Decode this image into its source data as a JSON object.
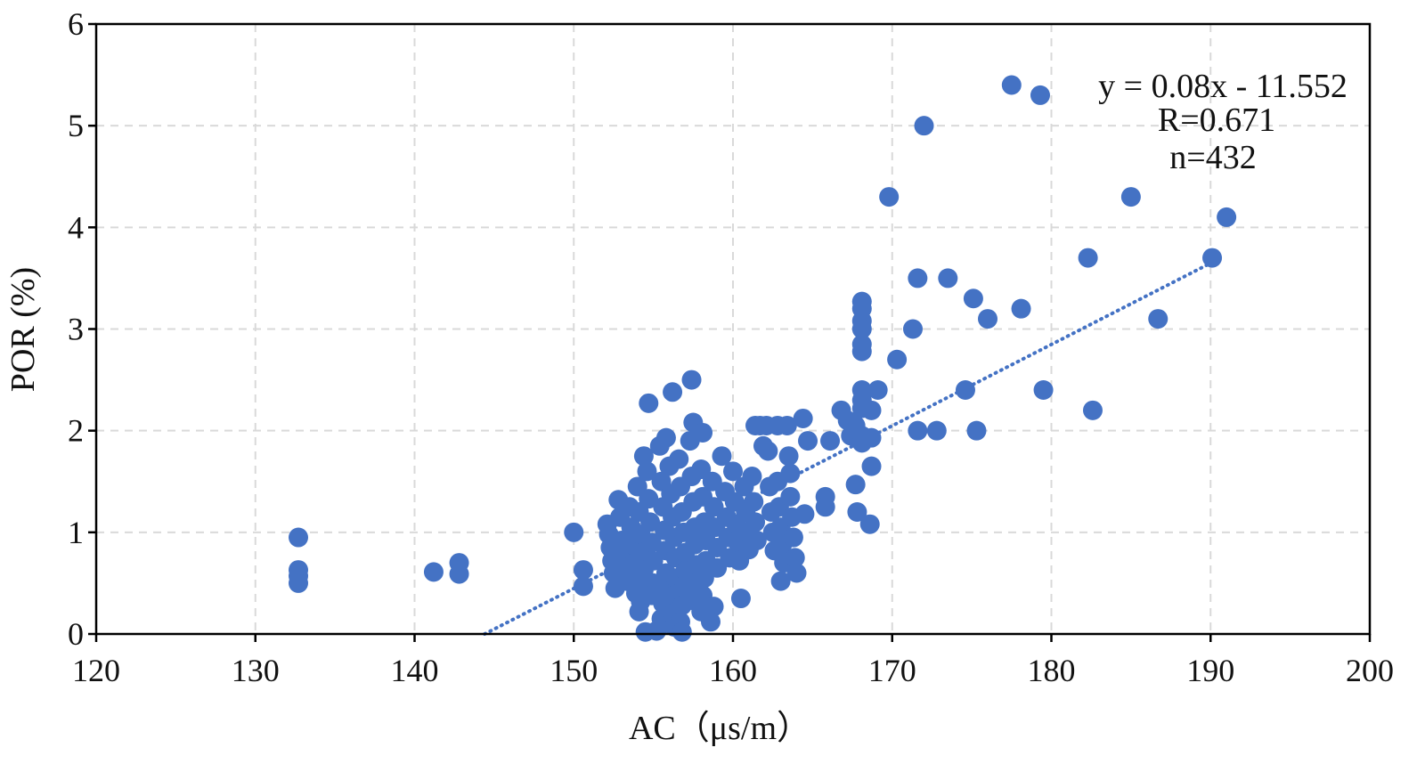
{
  "chart_data": {
    "type": "scatter",
    "title": "",
    "xlabel": "AC（μs/m）",
    "ylabel": "POR (%)",
    "xlim": [
      120,
      200
    ],
    "ylim": [
      0,
      6
    ],
    "x_ticks": [
      "120",
      "130",
      "140",
      "150",
      "160",
      "170",
      "180",
      "190",
      "200"
    ],
    "y_ticks": [
      "0",
      "1",
      "2",
      "3",
      "4",
      "5",
      "6"
    ],
    "grid": true,
    "legend": "none",
    "marker_color": "#4472C4",
    "trendline": {
      "style": "dotted",
      "slope": 0.08,
      "intercept": -11.552,
      "x_range": [
        144.4,
        190.3
      ]
    },
    "annotations": [
      "y = 0.08x - 11.552",
      "R=0.671",
      "n=432"
    ],
    "series": [
      {
        "points": [
          [
            132.7,
            0.95
          ],
          [
            132.7,
            0.63
          ],
          [
            132.7,
            0.57
          ],
          [
            132.7,
            0.5
          ],
          [
            141.2,
            0.61
          ],
          [
            142.8,
            0.7
          ],
          [
            142.8,
            0.59
          ],
          [
            150,
            1.0
          ],
          [
            150.6,
            0.63
          ],
          [
            150.6,
            0.47
          ],
          [
            152.1,
            1.08
          ],
          [
            152.2,
            0.98
          ],
          [
            152.3,
            0.85
          ],
          [
            152.4,
            0.72
          ],
          [
            152.5,
            0.6
          ],
          [
            152.6,
            0.45
          ],
          [
            152.8,
            1.32
          ],
          [
            152.9,
            1.15
          ],
          [
            153,
            0.92
          ],
          [
            153.1,
            0.78
          ],
          [
            153.2,
            0.65
          ],
          [
            153.3,
            0.52
          ],
          [
            153.5,
            1.25
          ],
          [
            153.6,
            1.05
          ],
          [
            153.7,
            0.88
          ],
          [
            153.8,
            0.7
          ],
          [
            153.9,
            0.57
          ],
          [
            153.9,
            0.4
          ],
          [
            154,
            1.45
          ],
          [
            154.1,
            1.2
          ],
          [
            154.2,
            0.98
          ],
          [
            154.3,
            0.8
          ],
          [
            154.4,
            0.63
          ],
          [
            154.3,
            0.45
          ],
          [
            154.2,
            0.32
          ],
          [
            154.1,
            0.22
          ],
          [
            154.6,
            1.6
          ],
          [
            154.7,
            1.33
          ],
          [
            154.8,
            1.1
          ],
          [
            154.9,
            0.9
          ],
          [
            155,
            0.72
          ],
          [
            155,
            0.5
          ],
          [
            154.9,
            0.38
          ],
          [
            154.4,
            1.75
          ],
          [
            154.5,
            0.02
          ],
          [
            155.2,
            0.03
          ],
          [
            154.7,
            2.27
          ],
          [
            155.4,
            1.85
          ],
          [
            155.5,
            1.5
          ],
          [
            155.6,
            1.25
          ],
          [
            155.7,
            1.02
          ],
          [
            155.8,
            0.82
          ],
          [
            155.8,
            0.6
          ],
          [
            155.7,
            0.45
          ],
          [
            155.6,
            0.3
          ],
          [
            155.5,
            0.15
          ],
          [
            155.8,
            1.93
          ],
          [
            156,
            1.65
          ],
          [
            156.1,
            1.38
          ],
          [
            156.2,
            1.15
          ],
          [
            156.3,
            0.95
          ],
          [
            156.4,
            0.75
          ],
          [
            156.4,
            0.55
          ],
          [
            156.3,
            0.38
          ],
          [
            156.2,
            0.2
          ],
          [
            156.3,
            0.07
          ],
          [
            156.2,
            2.38
          ],
          [
            156.6,
            1.72
          ],
          [
            156.7,
            1.45
          ],
          [
            156.8,
            1.2
          ],
          [
            156.9,
            1.0
          ],
          [
            157,
            0.8
          ],
          [
            157,
            0.62
          ],
          [
            156.9,
            0.45
          ],
          [
            156.8,
            0.28
          ],
          [
            156.7,
            0.12
          ],
          [
            156.8,
            0.02
          ],
          [
            157.4,
            2.5
          ],
          [
            157.5,
            2.08
          ],
          [
            157.3,
            1.9
          ],
          [
            157.4,
            1.55
          ],
          [
            157.5,
            1.3
          ],
          [
            157.6,
            1.05
          ],
          [
            157.6,
            0.88
          ],
          [
            157.7,
            0.68
          ],
          [
            157.6,
            0.5
          ],
          [
            157.5,
            0.33
          ],
          [
            158.1,
            1.98
          ],
          [
            158,
            1.62
          ],
          [
            158.1,
            1.35
          ],
          [
            158.2,
            1.1
          ],
          [
            158.3,
            0.92
          ],
          [
            158.3,
            0.72
          ],
          [
            158.2,
            0.55
          ],
          [
            158.1,
            0.38
          ],
          [
            158,
            0.22
          ],
          [
            158.7,
            1.5
          ],
          [
            158.8,
            1.25
          ],
          [
            158.9,
            1.05
          ],
          [
            159,
            0.85
          ],
          [
            159,
            0.65
          ],
          [
            158.8,
            0.27
          ],
          [
            158.6,
            0.12
          ],
          [
            159.3,
            1.75
          ],
          [
            159.5,
            1.4
          ],
          [
            159.6,
            1.15
          ],
          [
            159.7,
            0.95
          ],
          [
            159.8,
            0.75
          ],
          [
            160,
            1.6
          ],
          [
            160.1,
            1.3
          ],
          [
            160.2,
            1.08
          ],
          [
            160.3,
            0.9
          ],
          [
            160.4,
            0.72
          ],
          [
            160.5,
            0.35
          ],
          [
            160.7,
            1.45
          ],
          [
            160.8,
            1.2
          ],
          [
            160.9,
            1.0
          ],
          [
            161,
            0.83
          ],
          [
            161.2,
            1.55
          ],
          [
            161.3,
            1.3
          ],
          [
            161.4,
            1.1
          ],
          [
            161.5,
            0.92
          ],
          [
            161.4,
            2.05
          ],
          [
            161.7,
            2.05
          ],
          [
            161.9,
            1.85
          ],
          [
            162.1,
            2.05
          ],
          [
            162.2,
            1.8
          ],
          [
            162.3,
            1.45
          ],
          [
            162.4,
            1.2
          ],
          [
            162.5,
            1.0
          ],
          [
            162.6,
            0.82
          ],
          [
            162.8,
            2.05
          ],
          [
            162.8,
            1.5
          ],
          [
            162.9,
            1.25
          ],
          [
            163,
            1.05
          ],
          [
            163.1,
            0.88
          ],
          [
            163.2,
            0.7
          ],
          [
            163,
            0.52
          ],
          [
            163.4,
            2.05
          ],
          [
            163.5,
            1.75
          ],
          [
            163.6,
            1.58
          ],
          [
            163.6,
            1.35
          ],
          [
            163.7,
            1.15
          ],
          [
            163.8,
            0.95
          ],
          [
            163.9,
            0.75
          ],
          [
            164,
            0.6
          ],
          [
            164.4,
            2.12
          ],
          [
            164.5,
            1.18
          ],
          [
            164.7,
            1.9
          ],
          [
            165.8,
            1.35
          ],
          [
            165.8,
            1.25
          ],
          [
            166.1,
            1.9
          ],
          [
            166.8,
            2.2
          ],
          [
            167.2,
            2.1
          ],
          [
            167.4,
            1.95
          ],
          [
            167.7,
            2.05
          ],
          [
            167.7,
            1.47
          ],
          [
            167.8,
            1.2
          ],
          [
            168.1,
            3.27
          ],
          [
            168.1,
            3.2
          ],
          [
            168.1,
            3.08
          ],
          [
            168.1,
            3.0
          ],
          [
            168.1,
            2.85
          ],
          [
            168.1,
            2.78
          ],
          [
            168.1,
            2.4
          ],
          [
            168.1,
            2.3
          ],
          [
            168.1,
            2.22
          ],
          [
            168.1,
            1.95
          ],
          [
            168.1,
            1.88
          ],
          [
            168.7,
            2.2
          ],
          [
            168.7,
            1.93
          ],
          [
            168.7,
            1.65
          ],
          [
            168.6,
            1.08
          ],
          [
            169.1,
            2.4
          ],
          [
            169.8,
            4.3
          ],
          [
            170.3,
            2.7
          ],
          [
            171.3,
            3.0
          ],
          [
            171.6,
            3.5
          ],
          [
            171.6,
            2.0
          ],
          [
            172,
            5.0
          ],
          [
            172.8,
            2.0
          ],
          [
            173.5,
            3.5
          ],
          [
            174.6,
            2.4
          ],
          [
            175.1,
            3.3
          ],
          [
            175.3,
            2.0
          ],
          [
            176,
            3.1
          ],
          [
            177.5,
            5.4
          ],
          [
            178.1,
            3.2
          ],
          [
            179.3,
            5.3
          ],
          [
            179.5,
            2.4
          ],
          [
            182.3,
            3.7
          ],
          [
            182.6,
            2.2
          ],
          [
            185,
            4.3
          ],
          [
            186.7,
            3.1
          ],
          [
            190.1,
            3.7
          ],
          [
            191,
            4.1
          ]
        ]
      }
    ]
  }
}
